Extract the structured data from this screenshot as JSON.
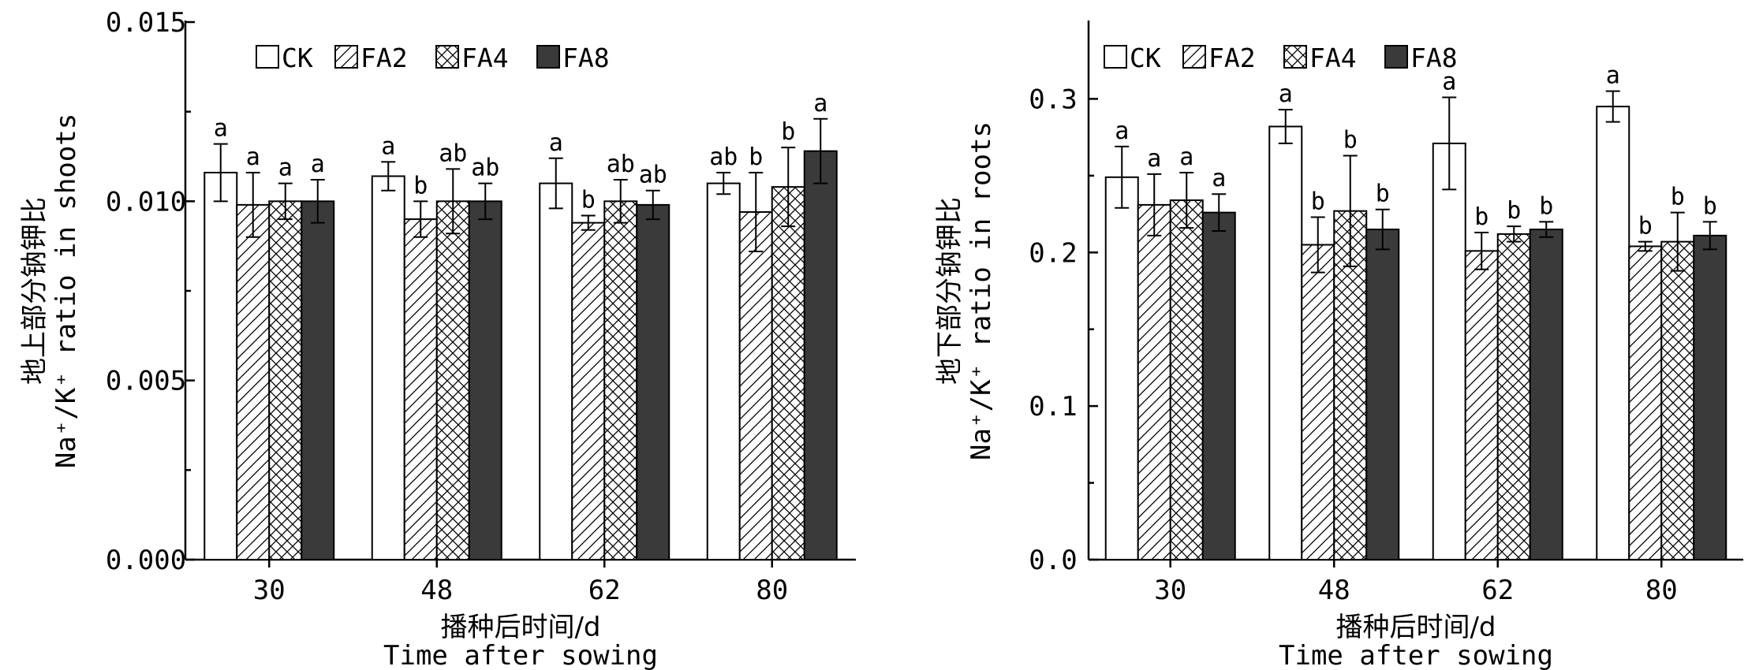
{
  "chart_data": [
    {
      "type": "bar",
      "categories": [
        "30",
        "48",
        "62",
        "80"
      ],
      "series": [
        {
          "name": "CK",
          "values": [
            0.0108,
            0.0107,
            0.0105,
            0.0105
          ],
          "errors": [
            0.0008,
            0.0004,
            0.0007,
            0.0003
          ],
          "sig": [
            "a",
            "a",
            "a",
            "ab"
          ]
        },
        {
          "name": "FA2",
          "values": [
            0.0099,
            0.0095,
            0.0094,
            0.0097
          ],
          "errors": [
            0.0009,
            0.0005,
            0.0002,
            0.0011
          ],
          "sig": [
            "a",
            "b",
            "b",
            "b"
          ]
        },
        {
          "name": "FA4",
          "values": [
            0.01,
            0.01,
            0.01,
            0.0104
          ],
          "errors": [
            0.0005,
            0.0009,
            0.0006,
            0.0011
          ],
          "sig": [
            "a",
            "ab",
            "ab",
            "b"
          ]
        },
        {
          "name": "FA8",
          "values": [
            0.01,
            0.01,
            0.0099,
            0.0114
          ],
          "errors": [
            0.0006,
            0.0005,
            0.0004,
            0.0009
          ],
          "sig": [
            "a",
            "ab",
            "ab",
            "a"
          ]
        }
      ],
      "ylim": [
        0,
        0.015
      ],
      "yticks": [
        "0.000",
        "0.005",
        "0.010",
        "0.015"
      ],
      "ylabel_cn": "地上部分钠钾比",
      "ylabel_en": "Na⁺/K⁺ ratio in shoots",
      "xlabel_cn": "播种后时间/d",
      "xlabel_en": "Time after sowing",
      "legend": "top-left"
    },
    {
      "type": "bar",
      "categories": [
        "30",
        "48",
        "62",
        "80"
      ],
      "series": [
        {
          "name": "CK",
          "values": [
            0.249,
            0.282,
            0.271,
            0.295
          ],
          "errors": [
            0.02,
            0.011,
            0.03,
            0.01
          ],
          "sig": [
            "a",
            "a",
            "a",
            "a"
          ]
        },
        {
          "name": "FA2",
          "values": [
            0.231,
            0.205,
            0.201,
            0.204
          ],
          "errors": [
            0.02,
            0.018,
            0.012,
            0.003
          ],
          "sig": [
            "a",
            "b",
            "b",
            "b"
          ]
        },
        {
          "name": "FA4",
          "values": [
            0.234,
            0.227,
            0.212,
            0.207
          ],
          "errors": [
            0.018,
            0.036,
            0.005,
            0.019
          ],
          "sig": [
            "a",
            "b",
            "b",
            "b"
          ]
        },
        {
          "name": "FA8",
          "values": [
            0.226,
            0.215,
            0.215,
            0.211
          ],
          "errors": [
            0.012,
            0.013,
            0.005,
            0.009
          ],
          "sig": [
            "a",
            "b",
            "b",
            "b"
          ]
        }
      ],
      "ylim": [
        0,
        0.35
      ],
      "yticks": [
        "0.0",
        "0.1",
        "0.2",
        "0.3"
      ],
      "ylabel_cn": "地下部分钠钾比",
      "ylabel_en": "Na⁺/K⁺ ratio in roots",
      "xlabel_cn": "播种后时间/d",
      "xlabel_en": "Time after sowing",
      "legend": "top-left"
    }
  ],
  "series_styles": {
    "CK": {
      "fill": "#ffffff",
      "pattern": "none"
    },
    "FA2": {
      "fill": "#ffffff",
      "pattern": "diagonal"
    },
    "FA4": {
      "fill": "#ffffff",
      "pattern": "crosshatch"
    },
    "FA8": {
      "fill": "#3a3a3a",
      "pattern": "none"
    }
  }
}
